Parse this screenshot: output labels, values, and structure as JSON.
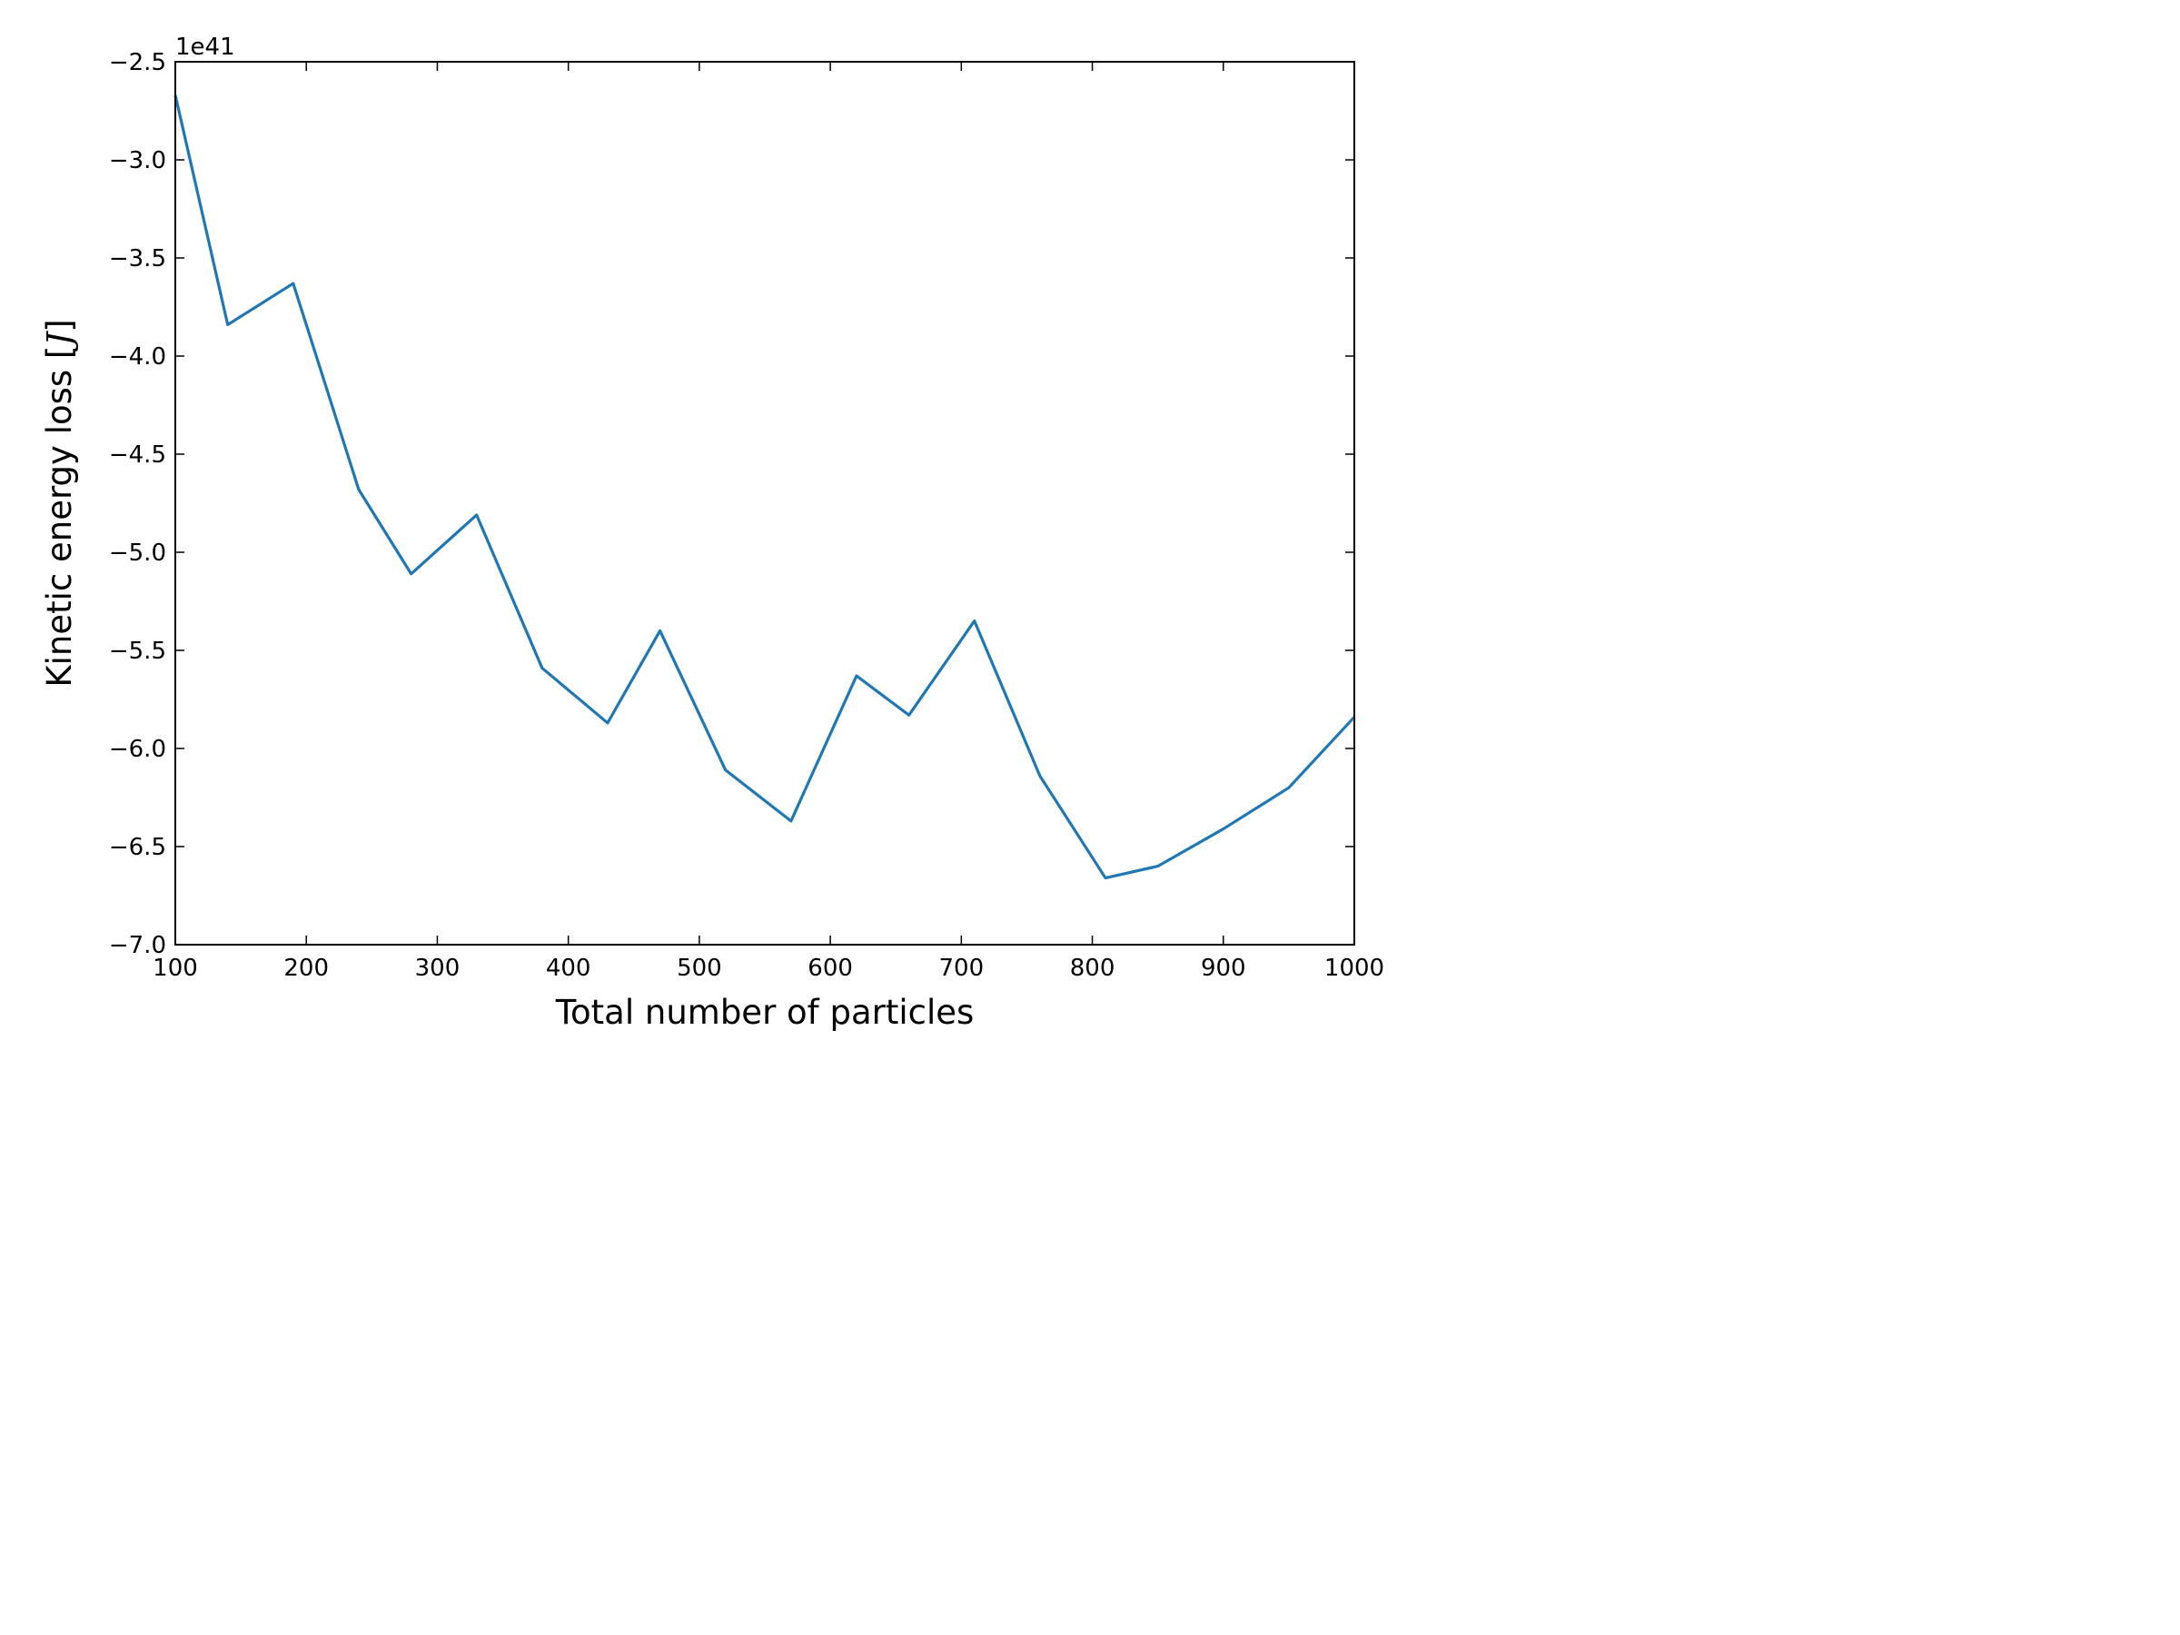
{
  "chart_data": {
    "type": "line",
    "title": "",
    "xlabel": "Total number of particles",
    "ylabel_prefix": "Kinetic energy loss [",
    "ylabel_unit": "J",
    "ylabel_suffix": "]",
    "y_offset_text": "1e41",
    "xlim": [
      100,
      1000
    ],
    "ylim": [
      -7.0,
      -2.5
    ],
    "x_ticks": [
      100,
      200,
      300,
      400,
      500,
      600,
      700,
      800,
      900,
      1000
    ],
    "x_tick_labels": [
      "100",
      "200",
      "300",
      "400",
      "500",
      "600",
      "700",
      "800",
      "900",
      "1000"
    ],
    "y_ticks": [
      -2.5,
      -3.0,
      -3.5,
      -4.0,
      -4.5,
      -5.0,
      -5.5,
      -6.0,
      -6.5,
      -7.0
    ],
    "y_tick_labels": [
      "−2.5",
      "−3.0",
      "−3.5",
      "−4.0",
      "−4.5",
      "−5.0",
      "−5.5",
      "−6.0",
      "−6.5",
      "−7.0"
    ],
    "grid": false,
    "line_color": "#1f77b4",
    "series": [
      {
        "x": [
          100,
          140,
          190,
          240,
          280,
          330,
          380,
          430,
          470,
          520,
          570,
          620,
          660,
          710,
          760,
          810,
          850,
          900,
          950,
          1000
        ],
        "values": [
          -2.67,
          -3.84,
          -3.63,
          -4.68,
          -5.11,
          -4.81,
          -5.59,
          -5.87,
          -5.4,
          -6.11,
          -6.37,
          -5.63,
          -5.83,
          -5.35,
          -6.14,
          -6.66,
          -6.6,
          -6.41,
          -6.2,
          -5.84
        ]
      }
    ]
  }
}
